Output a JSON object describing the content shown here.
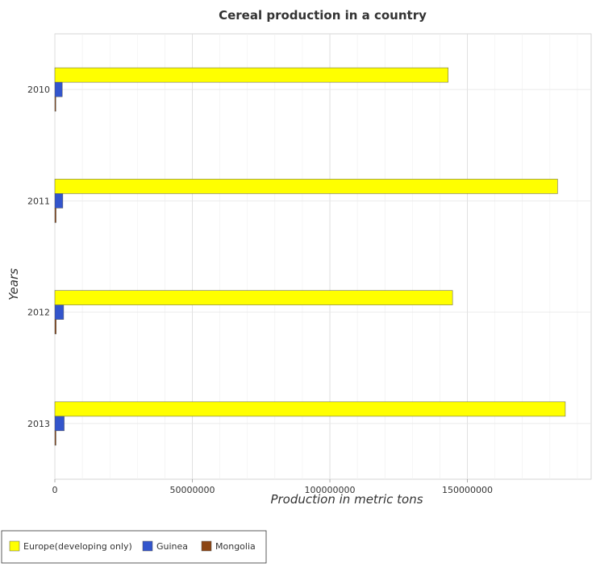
{
  "chart_data": {
    "type": "bar",
    "orientation": "horizontal",
    "title": "Cereal production in a country",
    "xlabel": "Production in metric tons",
    "ylabel": "Years",
    "categories": [
      "2010",
      "2011",
      "2012",
      "2013"
    ],
    "xlim": [
      0,
      195000000
    ],
    "xticks": [
      0,
      50000000,
      100000000,
      150000000
    ],
    "xtick_labels": [
      "0",
      "50000000",
      "100000000",
      "150000000"
    ],
    "grid": true,
    "legend_position": "bottom-left",
    "series": [
      {
        "name": "Europe(developing only)",
        "color": "#ffff00",
        "values": [
          143000000,
          182800000,
          144600000,
          185600000
        ]
      },
      {
        "name": "Guinea",
        "color": "#3355cc",
        "values": [
          2700000,
          2900000,
          3200000,
          3400000
        ]
      },
      {
        "name": "Mongolia",
        "color": "#8b4513",
        "values": [
          360000,
          450000,
          480000,
          420000
        ]
      }
    ]
  }
}
